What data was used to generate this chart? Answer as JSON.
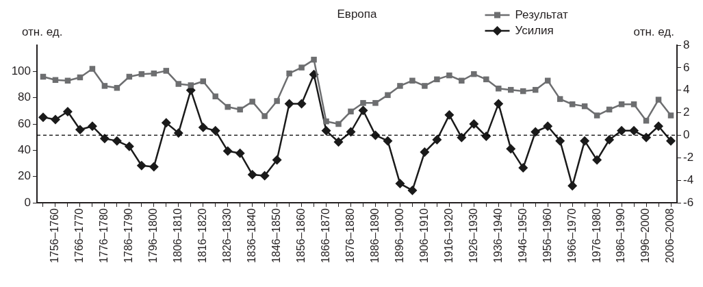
{
  "chart_data": {
    "type": "line",
    "title": "Европа",
    "ylabel": "отн. ед.",
    "y2label": "отн. ед.",
    "categories": [
      null,
      "1756–1760",
      null,
      "1766–1770",
      null,
      "1776–1780",
      null,
      "1786–1790",
      null,
      "1796–1800",
      null,
      "1806–1810",
      null,
      "1816–1820",
      null,
      "1826–1830",
      null,
      "1836–1840",
      null,
      "1846–1850",
      null,
      "1856–1860",
      null,
      "1866–1870",
      null,
      "1876–1880",
      null,
      "1886–1890",
      null,
      "1896–1900",
      null,
      "1906–1910",
      null,
      "1916–1920",
      null,
      "1926–1930",
      null,
      "1936–1940",
      null,
      "1946–1950",
      null,
      "1956–1960",
      null,
      "1966–1970",
      null,
      "1976–1980",
      null,
      "1986–1990",
      null,
      "1996–2000",
      null,
      "2006–2008"
    ],
    "series": [
      {
        "name": "Результат",
        "color": "#6d6e70",
        "marker": "square",
        "values": [
          96,
          93.5,
          93,
          95.5,
          102,
          89,
          87.5,
          96,
          98,
          98.5,
          100.5,
          90.5,
          89.5,
          92.5,
          81,
          73,
          71,
          77,
          66,
          77.5,
          98.5,
          103,
          109,
          62,
          60,
          69.5,
          76,
          76,
          82,
          89,
          93,
          89,
          94,
          97,
          93,
          98,
          94,
          87,
          86,
          85,
          86,
          93,
          79,
          75,
          73.5,
          66.5,
          71,
          75,
          75,
          62.5,
          78.5,
          66.5
        ]
      },
      {
        "name": "Усилия",
        "color": "#1a1a1a",
        "marker": "diamond",
        "axis": "y2",
        "values": [
          1.6,
          1.4,
          2.1,
          0.5,
          0.8,
          -0.3,
          -0.5,
          -1,
          -2.7,
          -2.8,
          1.1,
          0.2,
          4,
          0.7,
          0.4,
          -1.4,
          -1.6,
          -3.5,
          -3.6,
          -2.2,
          2.8,
          2.8,
          5.4,
          0.4,
          -0.6,
          0.3,
          2.2,
          0,
          -0.5,
          -4.3,
          -4.9,
          -1.5,
          -0.4,
          1.8,
          -0.2,
          1,
          -0.1,
          2.8,
          -1.2,
          -2.9,
          0.3,
          0.8,
          -0.5,
          -4.5,
          -0.5,
          -2.2,
          -0.4,
          0.4,
          0.4,
          -0.2,
          0.8,
          -0.5
        ]
      }
    ],
    "ylim": [
      0,
      120
    ],
    "yticks": [
      0,
      20,
      40,
      60,
      80,
      100
    ],
    "y2lim": [
      -6,
      8
    ],
    "y2ticks": [
      -6,
      -4,
      -2,
      0,
      2,
      4,
      6,
      8
    ],
    "ref_lines": [
      {
        "axis": "y2",
        "value": 0,
        "color": "#000000",
        "line_style": "dashed"
      }
    ],
    "legend": "top right",
    "grid": false
  }
}
